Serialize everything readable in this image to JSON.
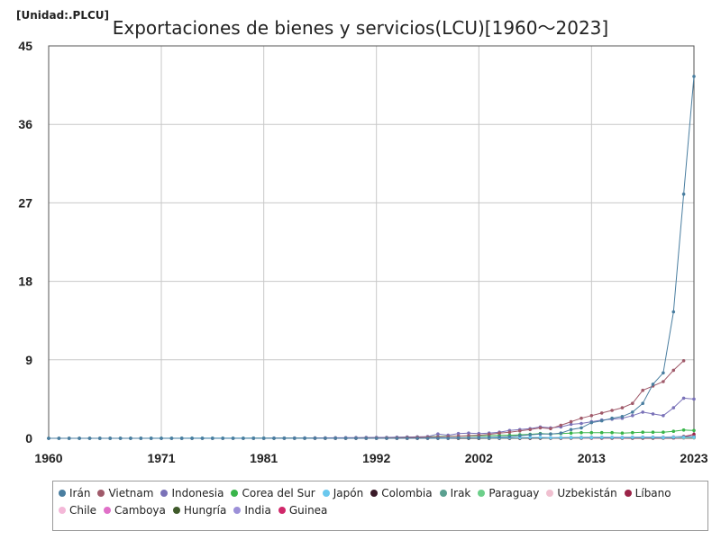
{
  "unit_label": "[Unidad:.PLCU]",
  "chart_data": {
    "type": "line",
    "title": "Exportaciones de bienes y servicios(LCU)[1960～2023]",
    "xlabel": "",
    "ylabel": "",
    "xlim": [
      1960,
      2023
    ],
    "ylim": [
      0,
      45
    ],
    "x_ticks": [
      1960,
      1971,
      1981,
      1992,
      2002,
      2013,
      2023
    ],
    "y_ticks": [
      0,
      9,
      18,
      27,
      36,
      45
    ],
    "grid": true,
    "legend_position": "bottom",
    "x": [
      1960,
      1961,
      1962,
      1963,
      1964,
      1965,
      1966,
      1967,
      1968,
      1969,
      1970,
      1971,
      1972,
      1973,
      1974,
      1975,
      1976,
      1977,
      1978,
      1979,
      1980,
      1981,
      1982,
      1983,
      1984,
      1985,
      1986,
      1987,
      1988,
      1989,
      1990,
      1991,
      1992,
      1993,
      1994,
      1995,
      1996,
      1997,
      1998,
      1999,
      2000,
      2001,
      2002,
      2003,
      2004,
      2005,
      2006,
      2007,
      2008,
      2009,
      2010,
      2011,
      2012,
      2013,
      2014,
      2015,
      2016,
      2017,
      2018,
      2019,
      2020,
      2021,
      2022,
      2023
    ],
    "series": [
      {
        "name": "Irán",
        "color": "#4a7ea0",
        "values": [
          0,
          0,
          0,
          0,
          0,
          0,
          0,
          0,
          0,
          0,
          0,
          0,
          0,
          0,
          0,
          0,
          0,
          0,
          0,
          0,
          0,
          0,
          0,
          0,
          0,
          0,
          0,
          0,
          0,
          0,
          0,
          0,
          0,
          0,
          0,
          0,
          0,
          0,
          0,
          0,
          0.05,
          0.05,
          0.08,
          0.1,
          0.15,
          0.2,
          0.3,
          0.4,
          0.5,
          0.5,
          0.6,
          1.0,
          1.2,
          1.8,
          2.0,
          2.3,
          2.5,
          3.0,
          4.0,
          6.2,
          7.5,
          14.5,
          28.0,
          41.5
        ]
      },
      {
        "name": "Vietnam",
        "color": "#a05a6a",
        "values": [
          null,
          null,
          null,
          null,
          null,
          null,
          null,
          null,
          null,
          null,
          null,
          null,
          null,
          null,
          null,
          null,
          null,
          null,
          null,
          null,
          null,
          null,
          null,
          null,
          null,
          null,
          0,
          0,
          0,
          0,
          0.01,
          0.02,
          0.03,
          0.04,
          0.05,
          0.08,
          0.1,
          0.12,
          0.15,
          0.18,
          0.25,
          0.3,
          0.35,
          0.45,
          0.6,
          0.7,
          0.85,
          1.0,
          1.2,
          1.1,
          1.5,
          1.9,
          2.3,
          2.6,
          2.9,
          3.2,
          3.5,
          4.0,
          5.5,
          6.0,
          6.5,
          7.8,
          8.9,
          null
        ]
      },
      {
        "name": "Indonesia",
        "color": "#7a72b8",
        "values": [
          0,
          0,
          0,
          0,
          0,
          0,
          0,
          0,
          0,
          0,
          0,
          0,
          0,
          0,
          0,
          0,
          0,
          0,
          0,
          0,
          0.01,
          0.01,
          0.02,
          0.02,
          0.03,
          0.03,
          0.04,
          0.05,
          0.06,
          0.07,
          0.08,
          0.09,
          0.1,
          0.1,
          0.12,
          0.14,
          0.16,
          0.2,
          0.5,
          0.35,
          0.55,
          0.6,
          0.55,
          0.6,
          0.7,
          0.9,
          1.0,
          1.1,
          1.3,
          1.2,
          1.3,
          1.6,
          1.7,
          1.9,
          2.1,
          2.2,
          2.3,
          2.6,
          3.0,
          2.8,
          2.6,
          3.5,
          4.6,
          4.5
        ]
      },
      {
        "name": "Corea del Sur",
        "color": "#39b54a",
        "values": [
          0,
          0,
          0,
          0,
          0,
          0,
          0,
          0,
          0,
          0,
          0,
          0,
          0,
          0,
          0,
          0,
          0,
          0,
          0,
          0,
          0.01,
          0.01,
          0.01,
          0.02,
          0.02,
          0.02,
          0.03,
          0.03,
          0.04,
          0.05,
          0.05,
          0.06,
          0.07,
          0.08,
          0.1,
          0.12,
          0.14,
          0.16,
          0.2,
          0.22,
          0.25,
          0.25,
          0.27,
          0.3,
          0.35,
          0.35,
          0.4,
          0.45,
          0.55,
          0.5,
          0.55,
          0.6,
          0.65,
          0.65,
          0.65,
          0.65,
          0.6,
          0.65,
          0.7,
          0.7,
          0.7,
          0.8,
          0.95,
          0.9
        ]
      },
      {
        "name": "Japón",
        "color": "#6ac8ee",
        "values": [
          0,
          0,
          0,
          0,
          0,
          0,
          0,
          0,
          0,
          0,
          0.01,
          0.01,
          0.01,
          0.01,
          0.02,
          0.02,
          0.02,
          0.02,
          0.02,
          0.02,
          0.03,
          0.03,
          0.03,
          0.03,
          0.03,
          0.04,
          0.03,
          0.03,
          0.03,
          0.04,
          0.04,
          0.04,
          0.04,
          0.04,
          0.04,
          0.04,
          0.05,
          0.05,
          0.05,
          0.05,
          0.05,
          0.05,
          0.05,
          0.05,
          0.06,
          0.07,
          0.08,
          0.09,
          0.09,
          0.06,
          0.08,
          0.08,
          0.07,
          0.08,
          0.09,
          0.09,
          0.08,
          0.09,
          0.1,
          0.1,
          0.08,
          0.1,
          0.12,
          0.12
        ]
      },
      {
        "name": "Colombia",
        "color": "#3a1a28",
        "values": [
          0,
          0,
          0,
          0,
          0,
          0,
          0,
          0,
          0,
          0,
          0,
          0,
          0,
          0,
          0,
          0,
          0,
          0,
          0,
          0,
          0,
          0,
          0,
          0,
          0,
          0,
          0,
          0,
          0,
          0,
          0,
          0,
          0,
          0,
          0,
          0,
          0,
          0.01,
          0.01,
          0.01,
          0.01,
          0.01,
          0.01,
          0.02,
          0.02,
          0.02,
          0.03,
          0.03,
          0.04,
          0.04,
          0.04,
          0.05,
          0.05,
          0.05,
          0.05,
          0.05,
          0.05,
          0.06,
          0.07,
          0.07,
          0.06,
          0.08,
          0.15,
          0.14
        ]
      },
      {
        "name": "Irak",
        "color": "#5aa090",
        "values": [
          null,
          null,
          null,
          null,
          null,
          null,
          null,
          null,
          null,
          null,
          null,
          null,
          null,
          null,
          null,
          null,
          null,
          null,
          null,
          null,
          null,
          null,
          null,
          null,
          null,
          null,
          null,
          null,
          null,
          null,
          null,
          null,
          null,
          null,
          null,
          null,
          null,
          null,
          null,
          null,
          null,
          null,
          null,
          null,
          0.02,
          0.03,
          0.04,
          0.05,
          0.07,
          0.05,
          0.06,
          0.09,
          0.1,
          0.1,
          0.1,
          0.06,
          0.05,
          0.07,
          0.1,
          0.1,
          0.06,
          0.1,
          0.15,
          0.15
        ]
      },
      {
        "name": "Paraguay",
        "color": "#6ccf8a",
        "values": [
          null,
          null,
          null,
          null,
          null,
          null,
          null,
          null,
          null,
          null,
          null,
          null,
          null,
          null,
          null,
          null,
          null,
          null,
          null,
          null,
          null,
          null,
          null,
          null,
          null,
          null,
          null,
          null,
          null,
          null,
          null,
          null,
          null,
          null,
          null,
          null,
          null,
          null,
          null,
          null,
          0.01,
          0.01,
          0.01,
          0.01,
          0.02,
          0.02,
          0.02,
          0.03,
          0.03,
          0.03,
          0.04,
          0.04,
          0.04,
          0.05,
          0.05,
          0.05,
          0.05,
          0.06,
          0.06,
          0.06,
          0.06,
          0.07,
          0.08,
          0.08
        ]
      },
      {
        "name": "Uzbekistán",
        "color": "#f0c0d0",
        "values": [
          null,
          null,
          null,
          null,
          null,
          null,
          null,
          null,
          null,
          null,
          null,
          null,
          null,
          null,
          null,
          null,
          null,
          null,
          null,
          null,
          null,
          null,
          null,
          null,
          null,
          null,
          null,
          null,
          null,
          null,
          null,
          null,
          null,
          null,
          null,
          null,
          null,
          null,
          null,
          null,
          0,
          0,
          0,
          0,
          0.01,
          0.01,
          0.01,
          0.01,
          0.02,
          0.02,
          0.02,
          0.02,
          0.03,
          0.03,
          0.03,
          0.03,
          0.04,
          0.05,
          0.08,
          0.1,
          0.1,
          0.12,
          0.15,
          0.18
        ]
      },
      {
        "name": "Líbano",
        "color": "#9b2448",
        "values": [
          null,
          null,
          null,
          null,
          null,
          null,
          null,
          null,
          null,
          null,
          null,
          null,
          null,
          null,
          null,
          null,
          null,
          null,
          null,
          null,
          null,
          null,
          null,
          null,
          null,
          null,
          null,
          null,
          null,
          null,
          null,
          null,
          null,
          null,
          null,
          null,
          null,
          null,
          null,
          null,
          0,
          0,
          0,
          0,
          0,
          0.01,
          0.01,
          0.01,
          0.01,
          0.01,
          0.01,
          0.01,
          0.01,
          0.01,
          0.01,
          0.01,
          0.01,
          0.01,
          0.01,
          0.01,
          0.02,
          0.05,
          0.2,
          0.45
        ]
      },
      {
        "name": "Chile",
        "color": "#f4b8d8",
        "values": [
          null,
          null,
          null,
          null,
          null,
          null,
          null,
          null,
          null,
          null,
          null,
          null,
          null,
          null,
          null,
          null,
          null,
          null,
          null,
          null,
          null,
          null,
          null,
          null,
          null,
          null,
          null,
          null,
          null,
          null,
          0,
          0,
          0,
          0.01,
          0.01,
          0.01,
          0.01,
          0.01,
          0.01,
          0.01,
          0.01,
          0.01,
          0.01,
          0.02,
          0.02,
          0.02,
          0.03,
          0.03,
          0.03,
          0.03,
          0.03,
          0.04,
          0.04,
          0.04,
          0.04,
          0.04,
          0.04,
          0.05,
          0.05,
          0.05,
          0.05,
          0.06,
          0.06,
          0.06
        ]
      },
      {
        "name": "Camboya",
        "color": "#e070c8",
        "values": [
          null,
          null,
          null,
          null,
          null,
          null,
          null,
          null,
          null,
          null,
          null,
          null,
          null,
          null,
          null,
          null,
          null,
          null,
          null,
          null,
          null,
          null,
          null,
          null,
          null,
          null,
          null,
          null,
          null,
          null,
          null,
          null,
          null,
          null,
          0,
          0,
          0,
          0,
          0,
          0.01,
          0.01,
          0.01,
          0.01,
          0.01,
          0.01,
          0.02,
          0.02,
          0.02,
          0.02,
          0.02,
          0.02,
          0.03,
          0.03,
          0.03,
          0.04,
          0.04,
          0.04,
          0.05,
          0.05,
          0.06,
          0.06,
          0.07,
          0.08,
          0.08
        ]
      },
      {
        "name": "Hungría",
        "color": "#3f5a2a",
        "values": [
          null,
          null,
          null,
          null,
          null,
          null,
          null,
          null,
          null,
          null,
          null,
          null,
          null,
          null,
          null,
          null,
          null,
          null,
          null,
          null,
          null,
          null,
          null,
          null,
          null,
          null,
          null,
          null,
          null,
          null,
          null,
          null,
          null,
          null,
          0,
          0,
          0.01,
          0.01,
          0.01,
          0.01,
          0.01,
          0.01,
          0.01,
          0.01,
          0.01,
          0.02,
          0.02,
          0.02,
          0.02,
          0.02,
          0.02,
          0.02,
          0.02,
          0.03,
          0.03,
          0.03,
          0.03,
          0.03,
          0.04,
          0.04,
          0.04,
          0.05,
          0.06,
          0.06
        ]
      },
      {
        "name": "India",
        "color": "#9c90d8",
        "values": [
          0,
          0,
          0,
          0,
          0,
          0,
          0,
          0,
          0,
          0,
          0,
          0,
          0,
          0,
          0,
          0,
          0,
          0,
          0,
          0,
          0,
          0,
          0,
          0,
          0,
          0,
          0,
          0,
          0,
          0,
          0,
          0,
          0,
          0,
          0.01,
          0.01,
          0.01,
          0.01,
          0.01,
          0.01,
          0.02,
          0.02,
          0.02,
          0.03,
          0.03,
          0.04,
          0.05,
          0.06,
          0.07,
          0.07,
          0.08,
          0.1,
          0.11,
          0.12,
          0.12,
          0.12,
          0.12,
          0.13,
          0.15,
          0.15,
          0.14,
          0.18,
          0.22,
          0.22
        ]
      },
      {
        "name": "Guinea",
        "color": "#d0286a",
        "values": [
          null,
          null,
          null,
          null,
          null,
          null,
          null,
          null,
          null,
          null,
          null,
          null,
          null,
          null,
          null,
          null,
          null,
          null,
          null,
          null,
          null,
          null,
          null,
          null,
          null,
          null,
          0,
          0,
          0,
          0,
          0,
          0,
          0,
          0,
          0,
          0,
          0,
          0,
          0,
          0,
          0,
          0,
          0,
          0,
          0,
          0,
          0,
          0.01,
          0.01,
          0.01,
          0.01,
          0.01,
          0.01,
          0.01,
          0.01,
          0.01,
          0.02,
          0.02,
          0.02,
          0.03,
          0.03,
          0.03,
          0.04,
          0.05
        ]
      }
    ]
  }
}
